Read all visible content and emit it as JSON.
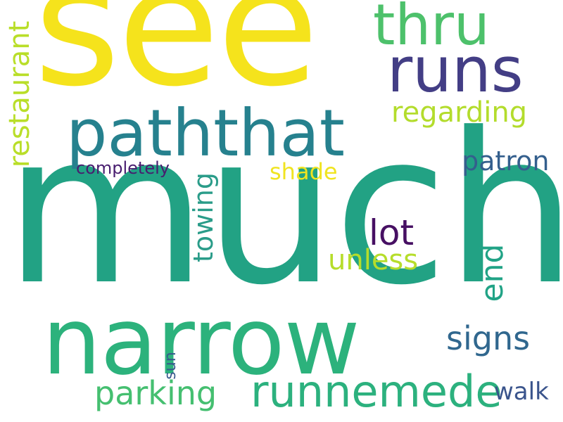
{
  "wordcloud": {
    "words": [
      {
        "text": "much",
        "color": "#22a284"
      },
      {
        "text": "see",
        "color": "#f5e31c"
      },
      {
        "text": "narrow",
        "color": "#2cb27c"
      },
      {
        "text": "paththat",
        "color": "#26818e"
      },
      {
        "text": "runs",
        "color": "#433e85"
      },
      {
        "text": "thru",
        "color": "#4dc16b"
      },
      {
        "text": "runnemede",
        "color": "#2cb17e"
      },
      {
        "text": "regarding",
        "color": "#b3dc2c"
      },
      {
        "text": "restaurant",
        "color": "#b9de29"
      },
      {
        "text": "lot",
        "color": "#471063"
      },
      {
        "text": "unless",
        "color": "#b6dd2b"
      },
      {
        "text": "end",
        "color": "#21a386"
      },
      {
        "text": "towing",
        "color": "#2a9c89"
      },
      {
        "text": "signs",
        "color": "#30678e"
      },
      {
        "text": "parking",
        "color": "#45bf70"
      },
      {
        "text": "patron",
        "color": "#345f8d"
      },
      {
        "text": "shade",
        "color": "#f0e420"
      },
      {
        "text": "completely",
        "color": "#481d6f"
      },
      {
        "text": "walk",
        "color": "#3a548c"
      },
      {
        "text": "sun",
        "color": "#37598c"
      }
    ]
  }
}
